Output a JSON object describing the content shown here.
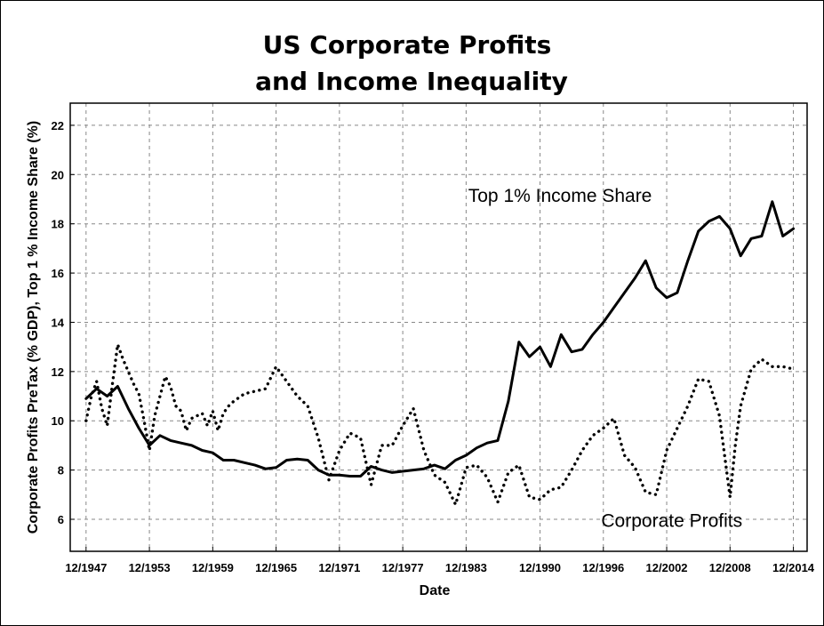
{
  "chart_data": {
    "type": "line",
    "title_lines": [
      "US Corporate Profits",
      "and Income Inequality"
    ],
    "xlabel": "Date",
    "ylabel": "Corporate Profits PreTax (% GDP), Top 1 % Income Share (%)",
    "x_ticks": [
      "12/1947",
      "12/1953",
      "12/1959",
      "12/1965",
      "12/1971",
      "12/1977",
      "12/1983",
      "12/1990",
      "12/1996",
      "12/2002",
      "12/2008",
      "12/2014"
    ],
    "x_tick_values": [
      1947,
      1953,
      1959,
      1965,
      1971,
      1977,
      1983,
      1990,
      1996,
      2002,
      2008,
      2014
    ],
    "xlim": [
      1945.5,
      2015.3
    ],
    "y_ticks": [
      6,
      8,
      10,
      12,
      14,
      16,
      18,
      20,
      22
    ],
    "ylim": [
      4.7,
      22.9
    ],
    "grid": true,
    "series": [
      {
        "name": "Top 1% Income Share",
        "style": "solid",
        "x": [
          1947,
          1948,
          1949,
          1950,
          1951,
          1952,
          1953,
          1954,
          1955,
          1956,
          1957,
          1958,
          1959,
          1960,
          1961,
          1962,
          1963,
          1964,
          1965,
          1966,
          1967,
          1968,
          1969,
          1970,
          1971,
          1972,
          1973,
          1974,
          1975,
          1976,
          1977,
          1978,
          1979,
          1980,
          1981,
          1982,
          1983,
          1984,
          1985,
          1986,
          1987,
          1988,
          1989,
          1990,
          1991,
          1992,
          1993,
          1994,
          1995,
          1996,
          1997,
          1998,
          1999,
          2000,
          2001,
          2002,
          2003,
          2004,
          2005,
          2006,
          2007,
          2008,
          2009,
          2010,
          2011,
          2012,
          2013,
          2014
        ],
        "values": [
          10.9,
          11.3,
          11.0,
          11.4,
          10.5,
          9.7,
          9.0,
          9.4,
          9.2,
          9.1,
          9.0,
          8.8,
          8.7,
          8.4,
          8.4,
          8.3,
          8.2,
          8.05,
          8.1,
          8.4,
          8.45,
          8.4,
          8.0,
          7.8,
          7.8,
          7.75,
          7.75,
          8.15,
          8.0,
          7.9,
          7.95,
          8.0,
          8.05,
          8.2,
          8.05,
          8.4,
          8.6,
          8.9,
          9.1,
          9.2,
          10.8,
          13.2,
          12.6,
          13.0,
          12.2,
          13.5,
          12.8,
          12.9,
          13.5,
          14.0,
          14.6,
          15.2,
          15.8,
          16.5,
          15.4,
          15.0,
          15.2,
          16.5,
          17.7,
          18.1,
          18.3,
          17.8,
          16.7,
          17.4,
          17.5,
          18.9,
          17.5,
          17.8
        ]
      },
      {
        "name": "Corporate Profits",
        "style": "dotted",
        "x": [
          1947,
          1947.5,
          1948,
          1948.5,
          1949,
          1949.5,
          1950,
          1950.5,
          1951,
          1951.5,
          1952,
          1952.5,
          1953,
          1953.5,
          1954,
          1954.5,
          1955,
          1955.5,
          1956,
          1956.5,
          1957,
          1957.5,
          1958,
          1958.5,
          1959,
          1959.5,
          1960,
          1960.5,
          1961,
          1962,
          1963,
          1964,
          1965,
          1966,
          1967,
          1968,
          1969,
          1970,
          1971,
          1972,
          1973,
          1974,
          1975,
          1976,
          1977,
          1978,
          1979,
          1980,
          1981,
          1982,
          1983,
          1984,
          1985,
          1986,
          1987,
          1988,
          1989,
          1990,
          1991,
          1992,
          1993,
          1994,
          1995,
          1996,
          1997,
          1998,
          1999,
          2000,
          2001,
          2002,
          2003,
          2004,
          2005,
          2006,
          2007,
          2008,
          2008.5,
          2009,
          2010,
          2011,
          2012,
          2013,
          2014
        ],
        "values": [
          10.0,
          11.0,
          11.6,
          10.5,
          9.8,
          11.5,
          13.1,
          12.5,
          12.0,
          11.5,
          11.1,
          10.0,
          8.8,
          10.2,
          11.0,
          11.8,
          11.4,
          10.6,
          10.4,
          9.6,
          10.1,
          10.2,
          10.3,
          9.8,
          10.4,
          9.6,
          10.3,
          10.6,
          10.8,
          11.1,
          11.2,
          11.3,
          12.2,
          11.6,
          11.0,
          10.6,
          9.3,
          7.6,
          8.8,
          9.5,
          9.3,
          7.4,
          9.0,
          9.0,
          9.8,
          10.5,
          8.8,
          7.8,
          7.5,
          6.6,
          8.1,
          8.2,
          7.7,
          6.7,
          7.9,
          8.2,
          6.9,
          6.8,
          7.2,
          7.3,
          8.0,
          8.8,
          9.4,
          9.7,
          10.1,
          8.6,
          8.1,
          7.1,
          7.0,
          8.8,
          9.7,
          10.6,
          11.7,
          11.6,
          10.2,
          6.9,
          9.0,
          10.6,
          12.1,
          12.5,
          12.2,
          12.2,
          12.1
        ]
      }
    ],
    "annotations": [
      {
        "text": "Top 1% Income Share",
        "x": 1983.2,
        "y": 18.9
      },
      {
        "text": "Corporate Profits",
        "x": 1995.8,
        "y": 5.7
      }
    ]
  }
}
